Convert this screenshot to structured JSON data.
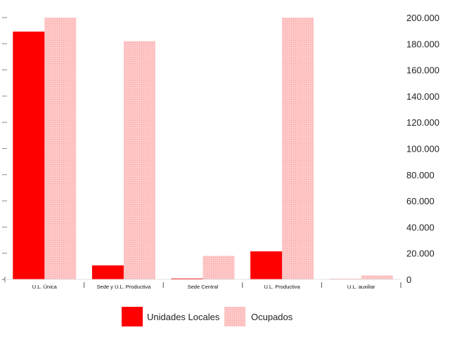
{
  "chart_data": {
    "type": "bar",
    "categories": [
      "U.L. Única",
      "Sede y U.L. Productiva",
      "Sede Central",
      "U.L. Productiva",
      "U.L. auxiliar"
    ],
    "series": [
      {
        "name": "Unidades Locales",
        "axis": "left",
        "values": [
          5300,
          300,
          20,
          600,
          10
        ],
        "color": "#ff0000"
      },
      {
        "name": "Ocupados",
        "axis": "right",
        "values": [
          200000,
          182000,
          18000,
          200000,
          3000
        ],
        "color": "#ffc0c0"
      }
    ],
    "y_right": {
      "ylim": [
        0,
        200000
      ],
      "ticks": [
        "0",
        "20.000",
        "40.000",
        "60.000",
        "80.000",
        "100.000",
        "120.000",
        "140.000",
        "160.000",
        "180.000",
        "200.000"
      ]
    },
    "y_left": {
      "ylim": [
        0,
        5600
      ]
    },
    "grid": true,
    "legend": "bottom-center",
    "legend_entries": [
      "Unidades Locales",
      "Ocupados"
    ]
  }
}
